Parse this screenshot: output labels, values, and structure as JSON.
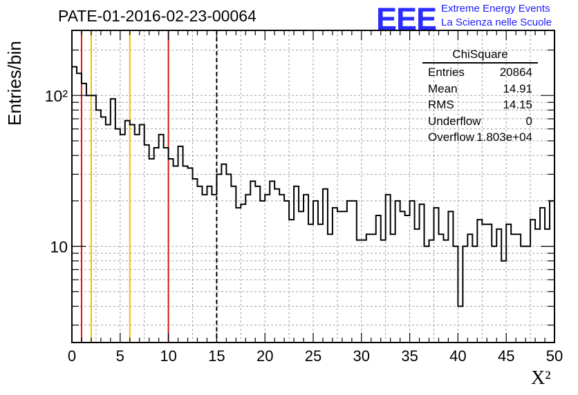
{
  "title": "PATE-01-2016-02-23-00064",
  "logo": {
    "mark": "EEE",
    "line1": "Extreme Energy Events",
    "line2": "La Scienza nelle Scuole"
  },
  "stats_box": {
    "title": "ChiSquare",
    "rows": [
      {
        "label": "Entries",
        "value": "20864"
      },
      {
        "label": "Mean",
        "value": "14.91"
      },
      {
        "label": "RMS",
        "value": "14.15"
      },
      {
        "label": "Underflow",
        "value": "0"
      },
      {
        "label": "Overflow",
        "value": "1.803e+04"
      }
    ]
  },
  "colors": {
    "red_line": "#dd1111",
    "yellow_line": "#eec200",
    "histogram": "#000000",
    "grid": "#a0a0a0",
    "logo": "#2b2bff"
  },
  "chart_data": {
    "type": "histogram",
    "title": "PATE-01-2016-02-23-00064",
    "xlabel": "X²",
    "ylabel": "Entries/bin",
    "xlim": [
      0,
      50
    ],
    "ylim": [
      2.3,
      270
    ],
    "ylog": true,
    "grid": true,
    "bin_width": 0.5,
    "x_ticks": [
      "0",
      "5",
      "10",
      "15",
      "20",
      "25",
      "30",
      "35",
      "40",
      "45",
      "50"
    ],
    "y_tick_labels": [
      {
        "value": 10,
        "text": "10"
      },
      {
        "value": 100,
        "text": "10²"
      }
    ],
    "values": [
      155,
      140,
      120,
      100,
      100,
      80,
      72,
      64,
      95,
      60,
      55,
      68,
      64,
      55,
      64,
      47,
      38,
      45,
      55,
      45,
      38,
      34,
      46,
      34,
      33,
      28,
      25,
      22,
      25,
      22,
      30,
      35,
      30,
      25,
      18,
      19,
      22,
      27,
      25,
      20,
      22,
      27,
      24,
      22,
      20,
      15,
      25,
      17,
      22,
      14,
      20,
      14,
      24,
      12,
      18,
      17,
      17,
      20,
      20,
      11,
      11,
      12,
      12,
      16,
      11,
      22,
      12,
      20,
      17,
      16,
      20,
      13,
      19,
      10,
      11,
      18,
      12,
      11,
      17,
      10,
      4,
      10,
      12,
      10,
      15,
      14,
      14,
      10,
      13,
      8,
      14,
      12,
      12,
      10,
      10,
      15,
      13,
      18,
      13,
      20
    ],
    "vertical_lines": [
      {
        "x": 1,
        "color": "red"
      },
      {
        "x": 2,
        "color": "yellow"
      },
      {
        "x": 6,
        "color": "yellow"
      },
      {
        "x": 10,
        "color": "red"
      },
      {
        "x": 15,
        "color": "black",
        "style": "dashed"
      }
    ]
  }
}
